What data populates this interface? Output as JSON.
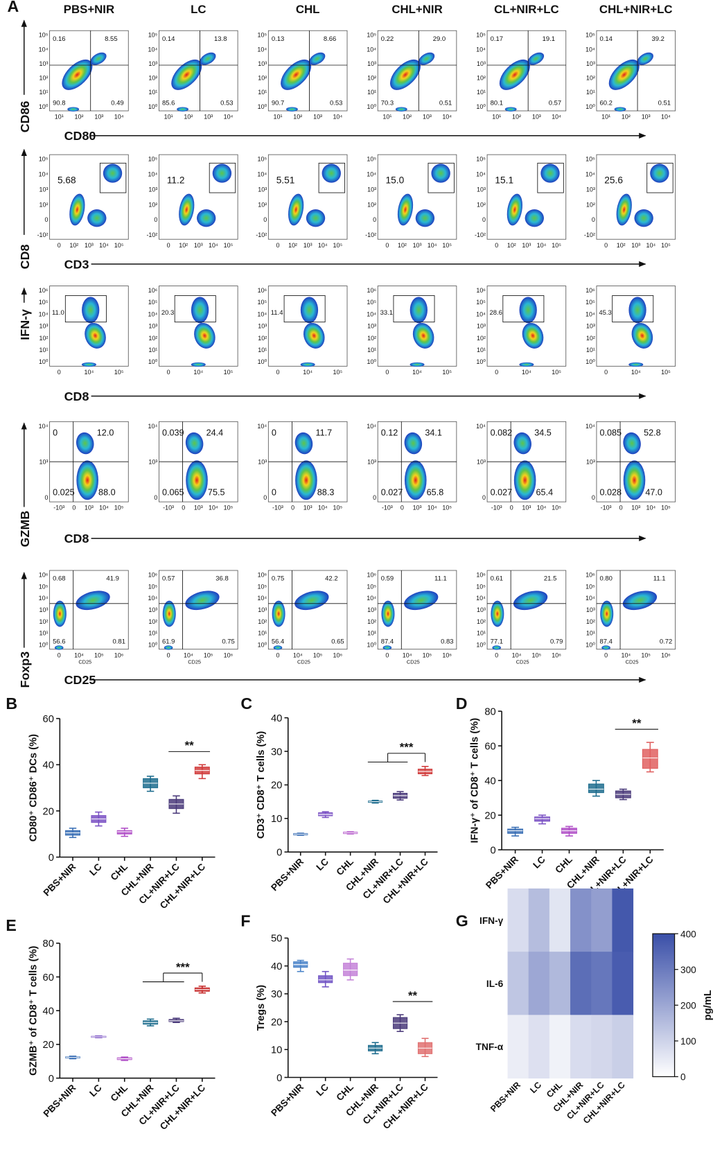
{
  "panel_labels": [
    "A",
    "B",
    "C",
    "D",
    "E",
    "F",
    "G"
  ],
  "flow": {
    "columns": [
      "PBS+NIR",
      "LC",
      "CHL",
      "CHL+NIR",
      "CL+NIR+LC",
      "CHL+NIR+LC"
    ],
    "rows": [
      {
        "y_label": "CD86",
        "x_label": "CD80",
        "y_ticks": [
          "10⁵",
          "10⁴",
          "10³",
          "10²",
          "10¹",
          "10⁰"
        ],
        "x_ticks": [
          "10¹",
          "10²",
          "10³",
          "10⁴"
        ],
        "values": [
          [
            "0.16",
            "8.55",
            "90.8",
            "0.49"
          ],
          [
            "0.14",
            "13.8",
            "85.6",
            "0.53"
          ],
          [
            "0.13",
            "8.66",
            "90.7",
            "0.53"
          ],
          [
            "0.22",
            "29.0",
            "70.3",
            "0.51"
          ],
          [
            "0.17",
            "19.1",
            "80.1",
            "0.57"
          ],
          [
            "0.14",
            "39.2",
            "60.2",
            "0.51"
          ]
        ]
      },
      {
        "y_label": "CD8",
        "x_label": "CD3",
        "y_ticks": [
          "10⁵",
          "10⁴",
          "10³",
          "10²",
          "0",
          "-10²"
        ],
        "x_ticks": [
          "0",
          "10²",
          "10³",
          "10⁴",
          "10⁵"
        ],
        "values": [
          [
            "5.68"
          ],
          [
            "11.2"
          ],
          [
            "5.51"
          ],
          [
            "15.0"
          ],
          [
            "15.1"
          ],
          [
            "25.6"
          ]
        ]
      },
      {
        "y_label": "IFN-γ",
        "x_label": "CD8",
        "y_ticks": [
          "10⁶",
          "10⁵",
          "10⁴",
          "10³",
          "10²",
          "10¹",
          "10⁰"
        ],
        "x_ticks": [
          "0",
          "10⁴",
          "10⁵"
        ],
        "values": [
          [
            "11.0"
          ],
          [
            "20.3"
          ],
          [
            "11.4"
          ],
          [
            "33.1"
          ],
          [
            "28.6"
          ],
          [
            "45.3"
          ]
        ]
      },
      {
        "y_label": "GZMB",
        "x_label": "CD8",
        "y_ticks": [
          "10⁴",
          "10³",
          "0"
        ],
        "x_ticks": [
          "-10³",
          "0",
          "10³",
          "10⁴",
          "10⁵"
        ],
        "values": [
          [
            "0",
            "12.0",
            "0.025",
            "88.0"
          ],
          [
            "0.039",
            "24.4",
            "0.065",
            "75.5"
          ],
          [
            "0",
            "11.7",
            "0",
            "88.3"
          ],
          [
            "0.12",
            "34.1",
            "0.027",
            "65.8"
          ],
          [
            "0.082",
            "34.5",
            "0.027",
            "65.4"
          ],
          [
            "0.085",
            "52.8",
            "0.028",
            "47.0"
          ]
        ]
      },
      {
        "y_label": "Foxp3",
        "x_label": "CD25",
        "plot_x_label": "CD25",
        "y_ticks": [
          "10⁶",
          "10⁵",
          "10⁴",
          "10³",
          "10²",
          "10¹",
          "10⁰"
        ],
        "x_ticks": [
          "0",
          "10⁴",
          "10⁵",
          "10⁶"
        ],
        "values": [
          [
            "0.68",
            "41.9",
            "56.6",
            "0.81"
          ],
          [
            "0.57",
            "36.8",
            "61.9",
            "0.75"
          ],
          [
            "0.75",
            "42.2",
            "56.4",
            "0.65"
          ],
          [
            "0.59",
            "11.1",
            "87.4",
            "0.83"
          ],
          [
            "0.61",
            "21.5",
            "77.1",
            "0.79"
          ],
          [
            "0.80",
            "11.1",
            "87.4",
            "0.72"
          ]
        ]
      }
    ]
  },
  "chart_data": [
    {
      "type": "box",
      "ylabel": "CD80⁺ CD86⁺ DCs (%)",
      "categories": [
        "PBS+NIR",
        "LC",
        "CHL",
        "CHL+NIR",
        "CL+NIR+LC",
        "CHL+NIR+LC"
      ],
      "min": [
        8.5,
        13.5,
        9,
        28.5,
        19,
        34
      ],
      "q1": [
        9.5,
        15,
        10,
        30,
        21,
        36
      ],
      "median": [
        10.5,
        16.5,
        11,
        32,
        23,
        37.5
      ],
      "q3": [
        11.5,
        18,
        11.5,
        34,
        25,
        39
      ],
      "max": [
        12.5,
        19.5,
        12.5,
        35,
        26.5,
        40
      ],
      "colors": [
        "#3a6fb5",
        "#7b52c4",
        "#b04fc7",
        "#1e6d8e",
        "#4a3a7a",
        "#d13c3c"
      ],
      "ylim": [
        0,
        60
      ],
      "yticks": [
        0,
        20,
        40,
        60
      ],
      "annotations": [
        {
          "text": "**",
          "from": [
            "CL+NIR+LC"
          ],
          "to": [
            "CHL+NIR+LC"
          ]
        }
      ]
    },
    {
      "type": "box",
      "ylabel": "CD3⁺ CD8⁺ T cells (%)",
      "categories": [
        "PBS+NIR",
        "LC",
        "CHL",
        "CHL+NIR",
        "CL+NIR+LC",
        "CHL+NIR+LC"
      ],
      "min": [
        5,
        10.3,
        5.4,
        14.6,
        15.5,
        22.8
      ],
      "q1": [
        5.1,
        10.8,
        5.5,
        14.8,
        16,
        23.3
      ],
      "median": [
        5.3,
        11.2,
        5.7,
        15,
        16.8,
        24
      ],
      "q3": [
        5.5,
        11.7,
        5.9,
        15.2,
        17.5,
        24.7
      ],
      "max": [
        5.6,
        12,
        6,
        15.4,
        18,
        25.5
      ],
      "colors": [
        "#3a6fb5",
        "#7b52c4",
        "#b04fc7",
        "#1e6d8e",
        "#4a3a7a",
        "#d13c3c"
      ],
      "ylim": [
        0,
        40
      ],
      "yticks": [
        0,
        10,
        20,
        30,
        40
      ],
      "annotations": [
        {
          "text": "***",
          "from": [
            "CHL+NIR",
            "CL+NIR+LC"
          ],
          "to": [
            "CHL+NIR+LC"
          ]
        }
      ]
    },
    {
      "type": "box",
      "ylabel": "IFN-γ⁺ of CD8⁺ T cells (%)",
      "categories": [
        "PBS+NIR",
        "LC",
        "CHL",
        "CHL+NIR",
        "CL+NIR+LC",
        "CHL+NIR+LC"
      ],
      "min": [
        8,
        15,
        8,
        31,
        29,
        45
      ],
      "q1": [
        9.5,
        16.5,
        9.5,
        33,
        30,
        47
      ],
      "median": [
        11,
        18,
        11,
        35,
        32,
        53
      ],
      "q3": [
        12,
        19,
        12.5,
        38,
        34,
        58
      ],
      "max": [
        13,
        20,
        13.5,
        40,
        35,
        62
      ],
      "colors": [
        "#3a6fb5",
        "#7b52c4",
        "#b04fc7",
        "#1e6d8e",
        "#4a3a7a",
        "#e06060"
      ],
      "ylim": [
        0,
        80
      ],
      "yticks": [
        0,
        20,
        40,
        60,
        80
      ],
      "annotations": [
        {
          "text": "**",
          "from": [
            "CL+NIR+LC"
          ],
          "to": [
            "CHL+NIR+LC"
          ]
        }
      ]
    },
    {
      "type": "box",
      "ylabel": "GZMB⁺ of CD8⁺ T cells (%)",
      "categories": [
        "PBS+NIR",
        "LC",
        "CHL",
        "CHL+NIR",
        "CL+NIR+LC",
        "CHL+NIR+LC"
      ],
      "min": [
        11.5,
        24,
        10.5,
        31,
        33,
        50.5
      ],
      "q1": [
        12,
        24.2,
        11,
        32,
        33.5,
        51.5
      ],
      "median": [
        12.3,
        24.5,
        11.5,
        33,
        34,
        52.5
      ],
      "q3": [
        12.6,
        24.8,
        12,
        34,
        34.8,
        53.5
      ],
      "max": [
        13,
        25,
        12.5,
        35,
        35.5,
        54.5
      ],
      "colors": [
        "#3a6fb5",
        "#7b52c4",
        "#b04fc7",
        "#1e6d8e",
        "#4a3a7a",
        "#c62828"
      ],
      "ylim": [
        0,
        80
      ],
      "yticks": [
        0,
        20,
        40,
        60,
        80
      ],
      "annotations": [
        {
          "text": "***",
          "from": [
            "CHL+NIR",
            "CL+NIR+LC"
          ],
          "to": [
            "CHL+NIR+LC"
          ]
        }
      ]
    },
    {
      "type": "box",
      "ylabel": "Tregs (%)",
      "categories": [
        "PBS+NIR",
        "LC",
        "CHL",
        "CHL+NIR",
        "CL+NIR+LC",
        "CHL+NIR+LC"
      ],
      "min": [
        38,
        32.5,
        35,
        8.5,
        16.5,
        7.5
      ],
      "q1": [
        39.5,
        34,
        36.5,
        9.5,
        17.5,
        8.5
      ],
      "median": [
        40.5,
        35,
        38.5,
        10.5,
        19.5,
        10.5
      ],
      "q3": [
        41.5,
        36.5,
        41,
        11.5,
        21.5,
        12.5
      ],
      "max": [
        42,
        38,
        42.5,
        12.5,
        22.5,
        14
      ],
      "colors": [
        "#4b84c9",
        "#7154c4",
        "#c483d8",
        "#1e6d8e",
        "#4a3a7a",
        "#e07070"
      ],
      "ylim": [
        0,
        50
      ],
      "yticks": [
        0,
        10,
        20,
        30,
        40,
        50
      ],
      "annotations": [
        {
          "text": "**",
          "from": [
            "CL+NIR+LC"
          ],
          "to": [
            "CHL+NIR+LC"
          ]
        }
      ]
    },
    {
      "type": "heatmap",
      "rows": [
        "IFN-γ",
        "IL-6",
        "TNF-α"
      ],
      "categories": [
        "PBS+NIR",
        "LC",
        "CHL",
        "CHL+NIR",
        "CL+NIR+LC",
        "CHL+NIR+LC"
      ],
      "values": [
        [
          80,
          150,
          60,
          250,
          220,
          380
        ],
        [
          130,
          200,
          160,
          330,
          310,
          370
        ],
        [
          40,
          70,
          30,
          80,
          90,
          110
        ]
      ],
      "colors": [
        "#ffffff",
        "#3a4fa8"
      ],
      "zlim": [
        0,
        400
      ],
      "zticks": [
        0,
        100,
        200,
        300,
        400
      ],
      "zlabel": "pg/mL"
    }
  ]
}
